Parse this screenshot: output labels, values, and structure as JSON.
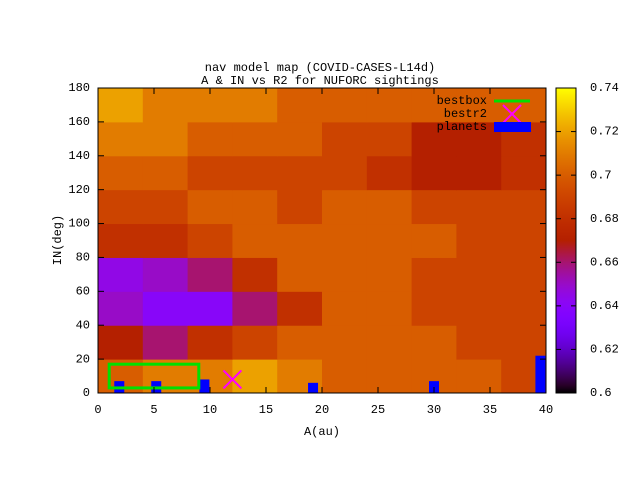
{
  "chart_data": {
    "type": "heatmap",
    "title": "nav model map (COVID-CASES-L14d)",
    "subtitle": "A & IN vs R2 for NUFORC sightings",
    "xlabel": "A(au)",
    "ylabel": "IN(deg)",
    "xlim": [
      0,
      40
    ],
    "ylim": [
      0,
      180
    ],
    "xticks": [
      0,
      5,
      10,
      15,
      20,
      25,
      30,
      35,
      40
    ],
    "yticks": [
      0,
      20,
      40,
      60,
      80,
      100,
      120,
      140,
      160,
      180
    ],
    "xbins": [
      0,
      4,
      8,
      12,
      16,
      20,
      24,
      28,
      32,
      36,
      40
    ],
    "ybins": [
      0,
      20,
      40,
      60,
      80,
      100,
      120,
      140,
      160,
      180
    ],
    "values": [
      [
        0.7,
        0.71,
        0.71,
        0.72,
        0.71,
        0.7,
        0.7,
        0.7,
        0.7,
        0.69
      ],
      [
        0.67,
        0.66,
        0.68,
        0.69,
        0.7,
        0.7,
        0.7,
        0.7,
        0.69,
        0.69
      ],
      [
        0.65,
        0.64,
        0.64,
        0.66,
        0.68,
        0.7,
        0.7,
        0.69,
        0.69,
        0.69
      ],
      [
        0.645,
        0.65,
        0.66,
        0.68,
        0.7,
        0.7,
        0.7,
        0.69,
        0.69,
        0.69
      ],
      [
        0.68,
        0.68,
        0.69,
        0.7,
        0.7,
        0.7,
        0.7,
        0.7,
        0.69,
        0.69
      ],
      [
        0.69,
        0.69,
        0.7,
        0.7,
        0.69,
        0.7,
        0.7,
        0.69,
        0.69,
        0.69
      ],
      [
        0.7,
        0.7,
        0.69,
        0.69,
        0.69,
        0.69,
        0.68,
        0.67,
        0.67,
        0.68
      ],
      [
        0.71,
        0.71,
        0.7,
        0.7,
        0.7,
        0.69,
        0.69,
        0.67,
        0.67,
        0.68
      ],
      [
        0.72,
        0.71,
        0.71,
        0.71,
        0.7,
        0.7,
        0.7,
        0.7,
        0.7,
        0.7
      ]
    ],
    "clim": [
      0.6,
      0.74
    ],
    "cticks": [
      0.6,
      0.62,
      0.64,
      0.66,
      0.68,
      0.7,
      0.72,
      0.74
    ],
    "bestbox": {
      "name": "bestbox",
      "color": "#00e000",
      "x": [
        1,
        9
      ],
      "y": [
        3,
        17
      ]
    },
    "bestr2": {
      "name": "bestr2",
      "color": "#ff00ff",
      "x": 12,
      "y": 8
    },
    "planets": {
      "name": "planets",
      "color": "#0000ff",
      "x": [
        1.9,
        5.2,
        9.5,
        19.2,
        30,
        39.5
      ],
      "values": [
        7,
        7,
        8,
        6,
        7,
        22
      ]
    }
  }
}
